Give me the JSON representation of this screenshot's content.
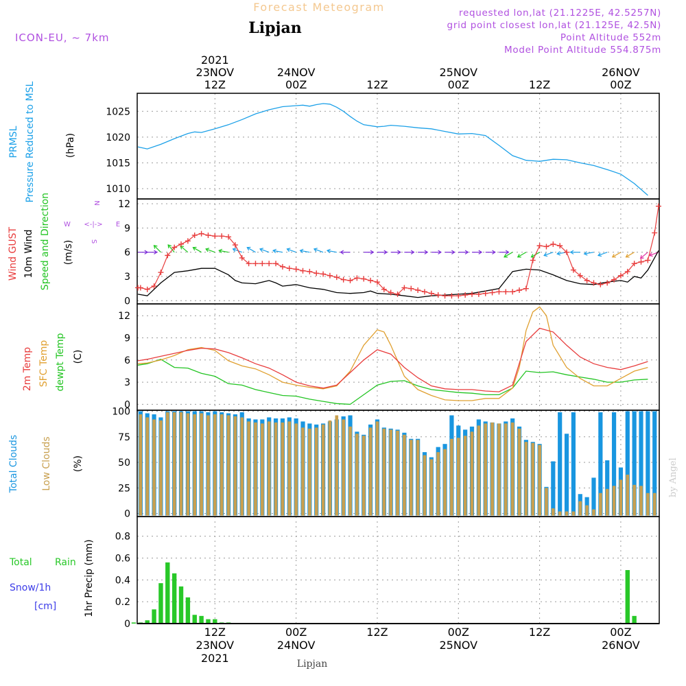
{
  "header": {
    "title": "Forecast Meteogram",
    "location": "Lipjan",
    "model": "ICON-EU, ~ 7km",
    "info_lines": [
      "requested lon,lat (21.1225E, 42.5257N)",
      "grid point closest lon,lat (21.125E, 42.5N)",
      "Point Altitude 552m",
      "Model Point Altitude 554.875m"
    ],
    "credit": "by Angel",
    "footer": "Lipjan"
  },
  "colors": {
    "pressure": "#1ba0e8",
    "gust": "#e83c3c",
    "wind": "#000000",
    "arrows": "#20c820",
    "arrows_purple": "#7a28d8",
    "temp2m": "#e83c3c",
    "sfc": "#e0a030",
    "dewpt": "#22c422",
    "total_cloud": "#1996e0",
    "low_cloud": "#c8a050",
    "rain": "#28c828",
    "snow": "#3c3ce8",
    "label_purple": "#b050e0"
  },
  "time_axis": {
    "top_year": "2021",
    "top_labels": [
      {
        "h": 12,
        "l1": "23NOV",
        "l2": "12Z"
      },
      {
        "h": 24,
        "l1": "24NOV",
        "l2": "00Z"
      },
      {
        "h": 36,
        "l1": "",
        "l2": "12Z"
      },
      {
        "h": 48,
        "l1": "25NOV",
        "l2": "00Z"
      },
      {
        "h": 60,
        "l1": "",
        "l2": "12Z"
      },
      {
        "h": 72,
        "l1": "26NOV",
        "l2": "00Z"
      }
    ],
    "bottom_labels": [
      {
        "h": 12,
        "l1": "12Z",
        "l2": "23NOV",
        "l3": "2021"
      },
      {
        "h": 24,
        "l1": "00Z",
        "l2": "24NOV",
        "l3": ""
      },
      {
        "h": 36,
        "l1": "12Z",
        "l2": "",
        "l3": ""
      },
      {
        "h": 48,
        "l1": "00Z",
        "l2": "25NOV",
        "l3": ""
      },
      {
        "h": 60,
        "l1": "12Z",
        "l2": "",
        "l3": ""
      },
      {
        "h": 72,
        "l1": "00Z",
        "l2": "26NOV",
        "l3": ""
      }
    ]
  },
  "panels": {
    "pressure": {
      "labels": [
        "PRMSL",
        "Pressure Reduced to MSL"
      ],
      "unit": "(hPa)",
      "ticks": [
        "1010",
        "1015",
        "1020",
        "1025"
      ]
    },
    "wind": {
      "labels": [
        "Wind GUST",
        "10m Wind",
        "Speed and Direction"
      ],
      "unit": "(m/s)",
      "ticks": [
        "0",
        "3",
        "6",
        "9",
        "12"
      ],
      "compass": {
        "n": "N",
        "s": "S",
        "w": "W",
        "e": "E",
        "arrow": "<-|->"
      }
    },
    "temp": {
      "labels": [
        "2m Temp",
        "SFC Temp",
        "dewpt Temp"
      ],
      "unit": "(C)",
      "ticks": [
        "0",
        "3",
        "6",
        "9",
        "12"
      ]
    },
    "clouds": {
      "labels": [
        "Total Clouds",
        "Low Clouds"
      ],
      "unit": "(%)",
      "ticks": [
        "0",
        "25",
        "50",
        "75",
        "100"
      ]
    },
    "precip": {
      "labels": [
        "Total",
        "Rain",
        "Snow/1h",
        "[cm]"
      ],
      "ylabel": "1hr Precip (mm)",
      "ticks": [
        "0",
        "0.2",
        "0.4",
        "0.6",
        "0.8"
      ]
    }
  },
  "chart_data": {
    "type": "meteogram",
    "x_unit": "hours from 2021-11-23 00Z",
    "x_range": [
      0,
      77
    ],
    "pressure": {
      "name": "PRMSL (hPa)",
      "ylim": [
        1008,
        1028.5
      ],
      "x": [
        0,
        2,
        4,
        6,
        8,
        9,
        10,
        12,
        14,
        16,
        18,
        20,
        22,
        24,
        25,
        26,
        27,
        28,
        29,
        30,
        31,
        32,
        33,
        34,
        36,
        37,
        38,
        40,
        42,
        44,
        46,
        48,
        50,
        52,
        54,
        56,
        58,
        59,
        60,
        62,
        64,
        66,
        68,
        70,
        72,
        74,
        76
      ],
      "y": [
        1018.1,
        1017.7,
        1018.6,
        1019.7,
        1020.7,
        1021.0,
        1020.9,
        1021.6,
        1022.4,
        1023.4,
        1024.5,
        1025.3,
        1025.9,
        1026.1,
        1026.2,
        1026.0,
        1026.3,
        1026.5,
        1026.4,
        1025.8,
        1025.0,
        1024.0,
        1023.1,
        1022.4,
        1022.0,
        1022.1,
        1022.3,
        1022.1,
        1021.8,
        1021.6,
        1021.1,
        1020.6,
        1020.7,
        1020.3,
        1018.4,
        1016.4,
        1015.5,
        1015.4,
        1015.3,
        1015.7,
        1015.6,
        1015.0,
        1014.5,
        1013.7,
        1012.8,
        1011.0,
        1008.7
      ]
    },
    "wind_gust": {
      "name": "Wind GUST (m/s)",
      "ylim": [
        -0.4,
        12.6
      ],
      "x": [
        0,
        1,
        2,
        3,
        4,
        5,
        6,
        7,
        8,
        9,
        10,
        11,
        12,
        13,
        14,
        15,
        16,
        17,
        18,
        19,
        20,
        21,
        22,
        23,
        24,
        25,
        26,
        27,
        28,
        29,
        30,
        31,
        32,
        33,
        34,
        35,
        36,
        37,
        38,
        39,
        40,
        41,
        42,
        43,
        44,
        45,
        46,
        47,
        48,
        49,
        50,
        51,
        52,
        53,
        54,
        55,
        56,
        57,
        58,
        59,
        60,
        61,
        62,
        63,
        64,
        65,
        66,
        67,
        68,
        69,
        70,
        71,
        72,
        73,
        74,
        75,
        76
      ],
      "y": [
        1.6,
        1.6,
        1.4,
        1.8,
        3.5,
        5.6,
        6.6,
        7.0,
        7.4,
        8.1,
        8.3,
        8.1,
        8.0,
        8.0,
        7.9,
        6.9,
        5.3,
        4.6,
        4.6,
        4.6,
        4.6,
        4.6,
        4.2,
        4.0,
        3.9,
        3.7,
        3.6,
        3.4,
        3.3,
        3.1,
        2.9,
        2.6,
        2.5,
        2.8,
        2.7,
        2.5,
        2.3,
        1.4,
        1.0,
        0.8,
        1.6,
        1.5,
        1.3,
        1.1,
        0.9,
        0.7,
        0.6,
        0.6,
        0.6,
        0.7,
        0.8,
        0.8,
        0.9,
        1.0,
        1.1,
        1.1,
        1.1,
        1.3,
        1.5,
        5.0,
        6.8,
        6.7,
        7.0,
        6.8,
        6.0,
        3.8,
        3.1,
        2.5,
        2.2,
        2.0,
        2.2,
        2.6,
        3.1,
        3.6,
        4.6,
        4.8,
        5.0
      ]
    },
    "wind_gust_tail": {
      "x": [
        76,
        77,
        78
      ],
      "y": [
        5.0,
        8.4,
        11.7
      ]
    },
    "wind_speed": {
      "name": "10m Wind speed (m/s)",
      "x": [
        0,
        2,
        4,
        6,
        8,
        10,
        12,
        14,
        15,
        16,
        18,
        20,
        21,
        22,
        24,
        26,
        28,
        30,
        32,
        34,
        35,
        36,
        38,
        40,
        42,
        44,
        46,
        48,
        50,
        52,
        54,
        56,
        58,
        60,
        62,
        64,
        66,
        68,
        70,
        72,
        73,
        74,
        75,
        76,
        78
      ],
      "y": [
        0.8,
        0.6,
        2.2,
        3.5,
        3.7,
        4.0,
        4.0,
        3.2,
        2.5,
        2.2,
        2.1,
        2.5,
        2.2,
        1.8,
        2.0,
        1.6,
        1.4,
        1.0,
        0.9,
        1.0,
        1.2,
        0.9,
        0.8,
        0.6,
        0.4,
        0.6,
        0.7,
        0.8,
        0.9,
        1.2,
        1.5,
        3.6,
        3.9,
        3.8,
        3.2,
        2.5,
        2.1,
        2.0,
        2.3,
        2.5,
        2.3,
        3.0,
        2.8,
        3.8,
        6.2
      ]
    },
    "wind_arrows": {
      "name": "10m Wind direction vectors",
      "x": [
        0,
        2,
        4,
        6,
        8,
        10,
        12,
        14,
        16,
        18,
        20,
        22,
        24,
        26,
        28,
        30,
        32,
        34,
        36,
        38,
        40,
        42,
        44,
        46,
        48,
        50,
        52,
        54,
        56,
        58,
        60,
        62,
        64,
        66,
        68,
        70,
        72,
        74,
        76,
        78
      ],
      "angle_deg": [
        0,
        0,
        225,
        230,
        220,
        210,
        200,
        190,
        200,
        210,
        200,
        190,
        200,
        190,
        200,
        190,
        180,
        0,
        0,
        0,
        0,
        0,
        0,
        0,
        0,
        0,
        0,
        0,
        150,
        150,
        150,
        160,
        170,
        180,
        170,
        160,
        150,
        150,
        140,
        160
      ],
      "length": [
        1.0,
        1.0,
        1.0,
        1.0,
        1.0,
        1.0,
        1.0,
        1.0,
        1.0,
        1.0,
        1.0,
        1.0,
        1.0,
        1.0,
        1.0,
        1.0,
        1.0,
        1.0,
        1.0,
        1.0,
        1.0,
        1.0,
        1.0,
        1.0,
        1.0,
        1.0,
        1.0,
        1.0,
        1.0,
        1.0,
        1.0,
        1.0,
        1.0,
        1.0,
        1.0,
        1.0,
        1.0,
        1.0,
        1.0,
        1.0
      ],
      "color": [
        "purple",
        "purple",
        "green",
        "green",
        "green",
        "green",
        "green",
        "green",
        "cyan",
        "cyan",
        "cyan",
        "cyan",
        "cyan",
        "cyan",
        "cyan",
        "cyan",
        "purple",
        "purple",
        "purple",
        "purple",
        "purple",
        "purple",
        "purple",
        "purple",
        "purple",
        "purple",
        "purple",
        "purple",
        "green",
        "green",
        "green",
        "cyan",
        "cyan",
        "cyan",
        "cyan",
        "cyan",
        "orange",
        "orange",
        "magenta",
        "magenta"
      ]
    },
    "temp_2m": {
      "name": "2m Temp (C)",
      "ylim": [
        -0.8,
        13.6
      ],
      "x": [
        0,
        2,
        4,
        6,
        8,
        10,
        12,
        14,
        16,
        18,
        20,
        22,
        24,
        26,
        28,
        30,
        32,
        34,
        36,
        38,
        40,
        42,
        44,
        46,
        48,
        50,
        52,
        54,
        56,
        58,
        60,
        62,
        64,
        66,
        68,
        70,
        72,
        74,
        76
      ],
      "y": [
        5.9,
        6.1,
        6.5,
        6.9,
        7.3,
        7.6,
        7.5,
        7.0,
        6.3,
        5.5,
        4.9,
        4.0,
        3.0,
        2.5,
        2.2,
        2.6,
        4.3,
        6.0,
        7.4,
        6.8,
        5.0,
        3.6,
        2.5,
        2.1,
        2.0,
        2.0,
        1.8,
        1.7,
        2.6,
        8.5,
        10.3,
        9.8,
        8.0,
        6.4,
        5.5,
        5.0,
        4.7,
        5.2,
        5.8
      ]
    },
    "temp_sfc": {
      "name": "SFC Temp (C)",
      "x": [
        0,
        2,
        4,
        6,
        8,
        10,
        12,
        14,
        16,
        18,
        20,
        22,
        24,
        26,
        28,
        30,
        32,
        34,
        36,
        37,
        38,
        40,
        42,
        44,
        46,
        48,
        50,
        52,
        54,
        56,
        57,
        58,
        59,
        60,
        61,
        62,
        64,
        66,
        68,
        70,
        72,
        74,
        76
      ],
      "y": [
        5.5,
        5.6,
        6.0,
        6.6,
        7.4,
        7.7,
        7.3,
        5.9,
        5.2,
        4.8,
        4.0,
        3.0,
        2.6,
        2.3,
        2.1,
        2.5,
        4.5,
        8.0,
        10.1,
        9.8,
        8.0,
        3.8,
        2.0,
        1.2,
        0.6,
        0.5,
        0.5,
        0.8,
        0.8,
        2.2,
        5.0,
        10.0,
        12.5,
        13.2,
        12.0,
        8.0,
        5.0,
        3.5,
        2.5,
        2.5,
        3.5,
        4.5,
        5.0
      ]
    },
    "temp_dewpt": {
      "name": "dewpt Temp (C)",
      "x": [
        0,
        2,
        4,
        6,
        8,
        10,
        12,
        14,
        16,
        18,
        20,
        22,
        24,
        26,
        28,
        30,
        32,
        34,
        36,
        38,
        40,
        42,
        44,
        46,
        48,
        50,
        52,
        54,
        56,
        58,
        60,
        62,
        64,
        66,
        68,
        70,
        72,
        74,
        76
      ],
      "y": [
        5.3,
        5.5,
        6.1,
        5.0,
        4.9,
        4.2,
        3.8,
        2.8,
        2.6,
        2.0,
        1.6,
        1.2,
        1.1,
        0.7,
        0.4,
        0.1,
        0.0,
        1.3,
        2.6,
        3.1,
        3.2,
        2.5,
        2.0,
        1.8,
        1.6,
        1.5,
        1.3,
        1.3,
        2.2,
        4.5,
        4.3,
        4.4,
        4.0,
        3.7,
        3.4,
        3.0,
        3.0,
        3.3,
        3.4
      ]
    },
    "cloud_total": {
      "name": "Total Clouds (%)",
      "ylim": [
        -3,
        101
      ],
      "x": [
        0,
        1,
        2,
        3,
        4,
        5,
        6,
        7,
        8,
        9,
        10,
        11,
        12,
        13,
        14,
        15,
        16,
        17,
        18,
        19,
        20,
        21,
        22,
        23,
        24,
        25,
        26,
        27,
        28,
        29,
        30,
        31,
        32,
        33,
        34,
        35,
        36,
        37,
        38,
        39,
        40,
        41,
        42,
        43,
        44,
        45,
        46,
        47,
        48,
        49,
        50,
        51,
        52,
        53,
        54,
        55,
        56,
        57,
        58,
        59,
        60,
        61,
        62,
        63,
        64,
        65,
        66,
        67,
        68,
        69,
        70,
        71,
        72,
        73,
        74,
        75,
        76
      ],
      "y": [
        96,
        100,
        98,
        97,
        94,
        100,
        100,
        100,
        100,
        100,
        100,
        99,
        100,
        99,
        98,
        97,
        99,
        93,
        92,
        92,
        94,
        93,
        93,
        94,
        93,
        90,
        88,
        87,
        88,
        90,
        92,
        95,
        96,
        80,
        77,
        87,
        92,
        84,
        83,
        82,
        79,
        73,
        73,
        60,
        55,
        65,
        68,
        96,
        86,
        82,
        85,
        92,
        90,
        89,
        88,
        90,
        93,
        85,
        72,
        70,
        68,
        26,
        51,
        99,
        78,
        99,
        19,
        16,
        35,
        99,
        52,
        99,
        45,
        100,
        100,
        100,
        100
      ],
      "tail": {
        "x": [
          77
        ],
        "y": [
          100
        ]
      }
    },
    "cloud_low": {
      "name": "Low Clouds (%)",
      "x": [
        0,
        1,
        2,
        3,
        4,
        5,
        6,
        7,
        8,
        9,
        10,
        11,
        12,
        13,
        14,
        15,
        16,
        17,
        18,
        19,
        20,
        21,
        22,
        23,
        24,
        25,
        26,
        27,
        28,
        29,
        30,
        31,
        32,
        33,
        34,
        35,
        36,
        37,
        38,
        39,
        40,
        41,
        42,
        43,
        44,
        45,
        46,
        47,
        48,
        49,
        50,
        51,
        52,
        53,
        54,
        55,
        56,
        57,
        58,
        59,
        60,
        61,
        62,
        63,
        64,
        65,
        66,
        67,
        68,
        69,
        70,
        71,
        72,
        73,
        74,
        75,
        76
      ],
      "y": [
        88,
        97,
        94,
        92,
        91,
        99,
        99,
        99,
        98,
        97,
        98,
        96,
        97,
        97,
        96,
        95,
        94,
        90,
        89,
        88,
        90,
        89,
        89,
        90,
        88,
        84,
        83,
        84,
        87,
        91,
        96,
        92,
        85,
        78,
        76,
        84,
        90,
        83,
        82,
        81,
        77,
        72,
        72,
        57,
        53,
        60,
        63,
        73,
        74,
        76,
        80,
        86,
        88,
        89,
        88,
        88,
        89,
        83,
        70,
        69,
        67,
        25,
        5,
        2,
        2,
        2,
        12,
        8,
        4,
        20,
        24,
        27,
        33,
        38,
        28,
        27,
        20
      ],
      "tail": {
        "x": [
          77
        ],
        "y": [
          20
        ]
      }
    },
    "precip": {
      "name": "1hr Precip (mm) - Total Rain",
      "ylim": [
        0,
        0.98
      ],
      "x": [
        0,
        1,
        2,
        3,
        4,
        5,
        6,
        7,
        8,
        9,
        10,
        11,
        12,
        13,
        14,
        73,
        74
      ],
      "y": [
        0.01,
        0.01,
        0.03,
        0.13,
        0.37,
        0.56,
        0.46,
        0.34,
        0.24,
        0.08,
        0.07,
        0.04,
        0.04,
        0.01,
        0.01,
        0.49,
        0.07
      ]
    }
  }
}
